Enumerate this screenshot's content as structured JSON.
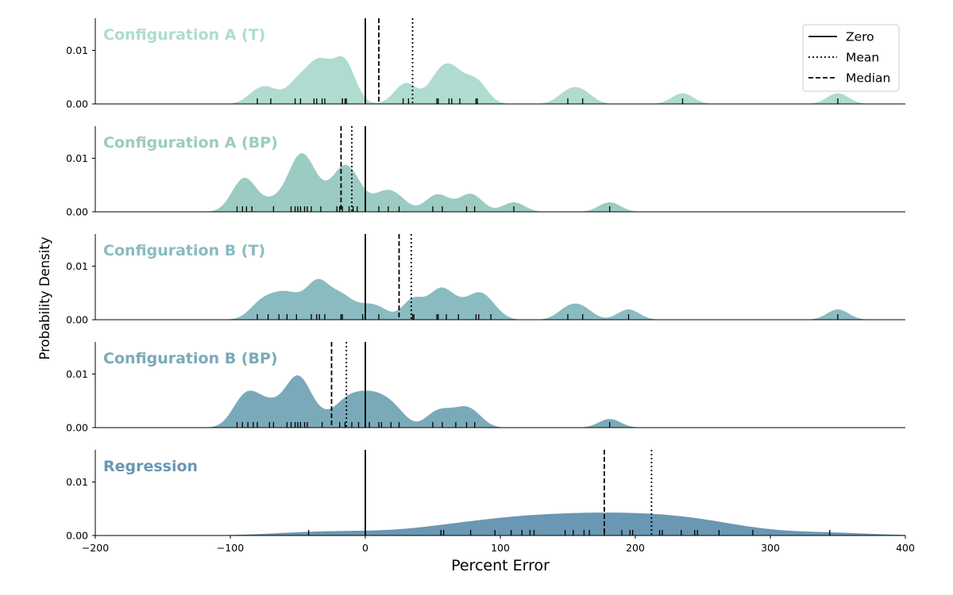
{
  "chart_data": {
    "type": "area",
    "xlabel": "Percent Error",
    "ylabel": "Probability Density",
    "xlim": [
      -200,
      400
    ],
    "ylim": [
      0,
      0.016
    ],
    "x_ticks": [
      "−200",
      "−100",
      "0",
      "100",
      "200",
      "300",
      "400"
    ],
    "x_tick_values": [
      -200,
      -100,
      0,
      100,
      200,
      300,
      400
    ],
    "y_ticks": [
      "0.00",
      "0.01"
    ],
    "y_tick_values": [
      0,
      0.01
    ],
    "grid": false,
    "legend_position": "top-right",
    "legend": [
      {
        "label": "Zero",
        "style": "solid"
      },
      {
        "label": "Mean",
        "style": "dotted"
      },
      {
        "label": "Median",
        "style": "dashed"
      }
    ],
    "series": [
      {
        "name": "Configuration A (T)",
        "color": "#afdbd0",
        "label_color": "#afdbd0",
        "zero": 0,
        "mean": 35,
        "median": 10,
        "points": [
          -80,
          -70,
          -52,
          -48,
          -38,
          -36,
          -32,
          -30,
          -17,
          -17,
          -15,
          -14,
          28,
          32,
          53,
          54,
          62,
          64,
          70,
          82,
          83,
          150,
          161,
          235,
          350
        ]
      },
      {
        "name": "Configuration A (BP)",
        "color": "#9bcbc3",
        "label_color": "#9bcbc3",
        "zero": 0,
        "mean": -10,
        "median": -18,
        "points": [
          -95,
          -91,
          -88,
          -84,
          -68,
          -55,
          -52,
          -50,
          -48,
          -45,
          -43,
          -40,
          -33,
          -21,
          -19,
          -17,
          -12,
          -9,
          -6,
          10,
          17,
          25,
          50,
          57,
          75,
          81,
          110,
          181
        ]
      },
      {
        "name": "Configuration B (T)",
        "color": "#8abbc0",
        "label_color": "#8abbc0",
        "zero": 0,
        "mean": 34,
        "median": 25,
        "points": [
          -80,
          -72,
          -64,
          -58,
          -51,
          -40,
          -36,
          -34,
          -30,
          -18,
          -17,
          -2,
          10,
          35,
          36,
          53,
          54,
          60,
          69,
          82,
          84,
          93,
          150,
          161,
          195,
          350
        ]
      },
      {
        "name": "Configuration B (BP)",
        "color": "#7aaab9",
        "label_color": "#7aaab9",
        "zero": 0,
        "mean": -14,
        "median": -25,
        "points": [
          -95,
          -91,
          -87,
          -83,
          -80,
          -71,
          -68,
          -58,
          -55,
          -52,
          -50,
          -48,
          -45,
          -43,
          -32,
          -19,
          -15,
          -10,
          -5,
          0,
          3,
          10,
          12,
          19,
          25,
          50,
          57,
          67,
          75,
          81,
          181
        ]
      },
      {
        "name": "Regression",
        "color": "#6a97b3",
        "label_color": "#6a97b3",
        "zero": 0,
        "mean": 212,
        "median": 177,
        "points": [
          -42,
          0,
          56,
          58,
          78,
          96,
          108,
          116,
          122,
          125,
          148,
          154,
          162,
          166,
          177,
          190,
          196,
          198,
          218,
          220,
          234,
          244,
          246,
          262,
          287,
          344
        ]
      }
    ]
  }
}
